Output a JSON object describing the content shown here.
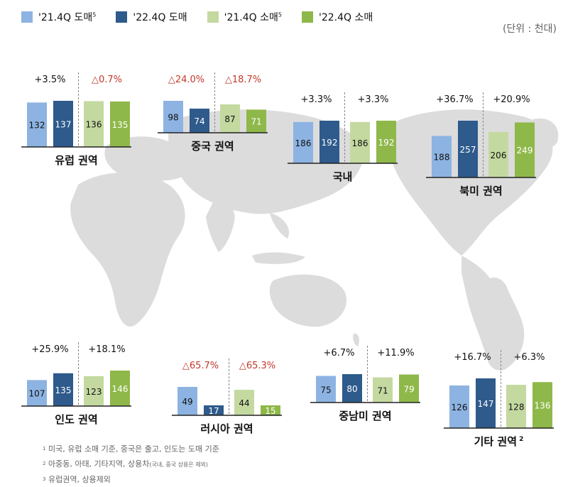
{
  "legend": [
    {
      "label": "'21.4Q 도매",
      "sup": "5",
      "color": "#8db3e2"
    },
    {
      "label": "'22.4Q 도매",
      "sup": "",
      "color": "#2e5a8c"
    },
    {
      "label": "'21.4Q 소매",
      "sup": "5",
      "color": "#c4d9a0"
    },
    {
      "label": "'22.4Q 소매",
      "sup": "",
      "color": "#8fb84a"
    }
  ],
  "unit": "(단위 : 천대)",
  "colors": {
    "up": "#111111",
    "down": "#c0392b"
  },
  "chart_data": [
    {
      "type": "bar",
      "title": "유럽 권역",
      "categories": [
        "'21.4Q 도매",
        "'22.4Q 도매",
        "'21.4Q 소매",
        "'22.4Q 소매"
      ],
      "values": [
        132,
        137,
        136,
        135
      ],
      "changes": [
        "+3.5%",
        "△0.7%"
      ]
    },
    {
      "type": "bar",
      "title": "중국 권역",
      "categories": [
        "'21.4Q 도매",
        "'22.4Q 도매",
        "'21.4Q 소매",
        "'22.4Q 소매"
      ],
      "values": [
        98,
        74,
        87,
        71
      ],
      "changes": [
        "△24.0%",
        "△18.7%"
      ]
    },
    {
      "type": "bar",
      "title": "국내",
      "categories": [
        "'21.4Q 도매",
        "'22.4Q 도매",
        "'21.4Q 소매",
        "'22.4Q 소매"
      ],
      "values": [
        186,
        192,
        186,
        192
      ],
      "changes": [
        "+3.3%",
        "+3.3%"
      ]
    },
    {
      "type": "bar",
      "title": "북미 권역",
      "categories": [
        "'21.4Q 도매",
        "'22.4Q 도매",
        "'21.4Q 소매",
        "'22.4Q 소매"
      ],
      "values": [
        188,
        257,
        206,
        249
      ],
      "changes": [
        "+36.7%",
        "+20.9%"
      ]
    },
    {
      "type": "bar",
      "title": "인도 권역",
      "categories": [
        "'21.4Q 도매",
        "'22.4Q 도매",
        "'21.4Q 소매",
        "'22.4Q 소매"
      ],
      "values": [
        107,
        135,
        123,
        146
      ],
      "changes": [
        "+25.9%",
        "+18.1%"
      ]
    },
    {
      "type": "bar",
      "title": "러시아 권역",
      "categories": [
        "'21.4Q 도매",
        "'22.4Q 도매",
        "'21.4Q 소매",
        "'22.4Q 소매"
      ],
      "values": [
        49,
        17,
        44,
        15
      ],
      "changes": [
        "△65.7%",
        "△65.3%"
      ]
    },
    {
      "type": "bar",
      "title": "중남미 권역",
      "categories": [
        "'21.4Q 도매",
        "'22.4Q 도매",
        "'21.4Q 소매",
        "'22.4Q 소매"
      ],
      "values": [
        75,
        80,
        71,
        79
      ],
      "changes": [
        "+6.7%",
        "+11.9%"
      ]
    },
    {
      "type": "bar",
      "title": "기타 권역",
      "title_sup": "2",
      "categories": [
        "'21.4Q 도매",
        "'22.4Q 도매",
        "'21.4Q 소매",
        "'22.4Q 소매"
      ],
      "values": [
        126,
        147,
        128,
        136
      ],
      "changes": [
        "+16.7%",
        "+6.3%"
      ]
    }
  ],
  "footnotes": [
    {
      "num": "1",
      "text": "미국, 유럽 소매 기준, 중국은 출고, 인도는 도매 기준",
      "small": ""
    },
    {
      "num": "2",
      "text": "아중동, 아태, 기타지역, 상용차",
      "small": "(국내, 중국 상용은 제외)"
    },
    {
      "num": "3",
      "text": "유럽권역, 상용제외",
      "small": ""
    }
  ]
}
